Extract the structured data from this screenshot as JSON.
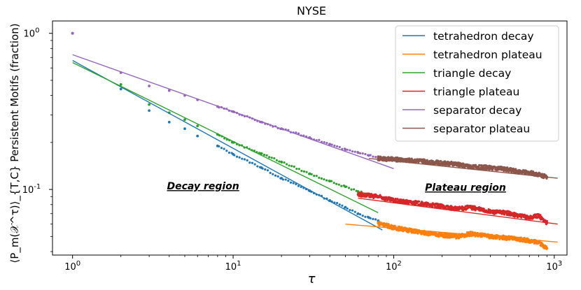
{
  "chart_data": {
    "type": "scatter",
    "title": "NYSE",
    "xlabel": "τ",
    "ylabel": "⟨P_m(𝒳^τ)⟩_{T,C} Persistent Motifs (fraction)",
    "xscale": "log",
    "yscale": "log",
    "xlim": [
      0.75,
      1200
    ],
    "ylim": [
      0.038,
      1.2
    ],
    "x_ticks": [
      {
        "value": 1,
        "label": "10^0"
      },
      {
        "value": 10,
        "label": "10^1"
      },
      {
        "value": 100,
        "label": "10^2"
      },
      {
        "value": 1000,
        "label": "10^3"
      }
    ],
    "y_ticks": [
      {
        "value": 1,
        "label": "10^0"
      },
      {
        "value": 0.1,
        "label": "10^-1"
      }
    ],
    "legend_position": "upper right",
    "series": [
      {
        "name": "tetrahedron",
        "color": "#1f77b4",
        "points": [
          [
            1,
            1.0
          ],
          [
            2,
            0.44
          ],
          [
            3,
            0.32
          ],
          [
            4,
            0.27
          ],
          [
            5,
            0.245
          ],
          [
            6,
            0.22
          ],
          [
            8,
            0.19
          ],
          [
            10,
            0.168
          ],
          [
            15,
            0.138
          ],
          [
            20,
            0.118
          ],
          [
            30,
            0.098
          ],
          [
            40,
            0.085
          ],
          [
            50,
            0.077
          ],
          [
            60,
            0.07
          ],
          [
            70,
            0.066
          ],
          [
            80,
            0.063
          ]
        ]
      },
      {
        "name": "tetrahedron plateau data",
        "color": "#ff7f0e",
        "points": [
          [
            80,
            0.061
          ],
          [
            100,
            0.057
          ],
          [
            150,
            0.053
          ],
          [
            200,
            0.051
          ],
          [
            250,
            0.05
          ],
          [
            300,
            0.052
          ],
          [
            400,
            0.05
          ],
          [
            500,
            0.049
          ],
          [
            600,
            0.048
          ],
          [
            700,
            0.047
          ],
          [
            800,
            0.046
          ],
          [
            900,
            0.042
          ]
        ]
      },
      {
        "name": "triangle",
        "color": "#2ca02c",
        "points": [
          [
            1,
            1.0
          ],
          [
            2,
            0.47
          ],
          [
            3,
            0.35
          ],
          [
            4,
            0.31
          ],
          [
            5,
            0.28
          ],
          [
            6,
            0.255
          ],
          [
            8,
            0.225
          ],
          [
            10,
            0.2
          ],
          [
            15,
            0.17
          ],
          [
            20,
            0.15
          ],
          [
            30,
            0.126
          ],
          [
            40,
            0.113
          ],
          [
            50,
            0.104
          ],
          [
            60,
            0.097
          ],
          [
            70,
            0.093
          ]
        ]
      },
      {
        "name": "triangle plateau data",
        "color": "#d62728",
        "points": [
          [
            60,
            0.093
          ],
          [
            80,
            0.09
          ],
          [
            100,
            0.085
          ],
          [
            150,
            0.081
          ],
          [
            200,
            0.078
          ],
          [
            250,
            0.075
          ],
          [
            300,
            0.077
          ],
          [
            400,
            0.072
          ],
          [
            500,
            0.071
          ],
          [
            600,
            0.068
          ],
          [
            700,
            0.066
          ],
          [
            800,
            0.068
          ],
          [
            900,
            0.061
          ]
        ]
      },
      {
        "name": "separator",
        "color": "#9467bd",
        "points": [
          [
            1,
            1.0
          ],
          [
            2,
            0.56
          ],
          [
            3,
            0.46
          ],
          [
            4,
            0.43
          ],
          [
            5,
            0.4
          ],
          [
            6,
            0.375
          ],
          [
            8,
            0.34
          ],
          [
            10,
            0.315
          ],
          [
            15,
            0.27
          ],
          [
            20,
            0.245
          ],
          [
            30,
            0.215
          ],
          [
            40,
            0.195
          ],
          [
            50,
            0.18
          ],
          [
            60,
            0.172
          ],
          [
            70,
            0.165
          ],
          [
            80,
            0.162
          ]
        ]
      },
      {
        "name": "separator plateau data",
        "color": "#8c564b",
        "points": [
          [
            80,
            0.158
          ],
          [
            100,
            0.156
          ],
          [
            150,
            0.152
          ],
          [
            200,
            0.148
          ],
          [
            250,
            0.145
          ],
          [
            300,
            0.14
          ],
          [
            400,
            0.138
          ],
          [
            500,
            0.135
          ],
          [
            600,
            0.13
          ],
          [
            700,
            0.128
          ],
          [
            800,
            0.125
          ],
          [
            900,
            0.12
          ]
        ]
      }
    ],
    "fit_lines": [
      {
        "name": "tetrahedron decay",
        "color": "#1f77b4",
        "x": [
          1,
          85
        ],
        "y": [
          0.67,
          0.055
        ]
      },
      {
        "name": "tetrahedron plateau",
        "color": "#ff7f0e",
        "x": [
          50,
          1050
        ],
        "y": [
          0.06,
          0.046
        ]
      },
      {
        "name": "triangle decay",
        "color": "#2ca02c",
        "x": [
          1,
          80
        ],
        "y": [
          0.65,
          0.071
        ]
      },
      {
        "name": "triangle plateau",
        "color": "#d62728",
        "x": [
          60,
          1050
        ],
        "y": [
          0.088,
          0.06
        ]
      },
      {
        "name": "separator decay",
        "color": "#9467bd",
        "x": [
          1,
          100
        ],
        "y": [
          0.73,
          0.136
        ]
      },
      {
        "name": "separator plateau",
        "color": "#8c564b",
        "x": [
          70,
          1050
        ],
        "y": [
          0.158,
          0.118
        ]
      }
    ],
    "annotations": [
      {
        "text": "Decay region",
        "x": 6.5,
        "y": 0.1
      },
      {
        "text": "Plateau region",
        "x": 280,
        "y": 0.098
      }
    ]
  }
}
